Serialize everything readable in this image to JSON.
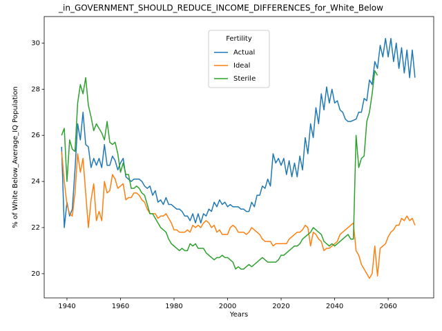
{
  "chart_data": {
    "type": "line",
    "title": "_in_GOVERNMENT_SHOULD_REDUCE_INCOME_DIFFERENCES_for_White_Below",
    "xlabel": "Years",
    "ylabel": "% of White Below_Average_IQ Population",
    "legend_title": "Fertility",
    "legend": "upper center",
    "grid": false,
    "xlim": [
      1931.5,
      2077
    ],
    "ylim": [
      18.95,
      31.15
    ],
    "xticks": [
      1940,
      1960,
      1980,
      2000,
      2020,
      2040,
      2060
    ],
    "yticks": [
      20,
      22,
      24,
      26,
      28,
      30
    ],
    "x": [
      1938,
      1939,
      1940,
      1941,
      1942,
      1943,
      1944,
      1945,
      1946,
      1947,
      1948,
      1949,
      1950,
      1951,
      1952,
      1953,
      1954,
      1955,
      1956,
      1957,
      1958,
      1959,
      1960,
      1961,
      1962,
      1963,
      1964,
      1965,
      1966,
      1967,
      1968,
      1969,
      1970,
      1971,
      1972,
      1973,
      1974,
      1975,
      1976,
      1977,
      1978,
      1979,
      1980,
      1981,
      1982,
      1983,
      1984,
      1985,
      1986,
      1987,
      1988,
      1989,
      1990,
      1991,
      1992,
      1993,
      1994,
      1995,
      1996,
      1997,
      1998,
      1999,
      2000,
      2001,
      2002,
      2003,
      2004,
      2005,
      2006,
      2007,
      2008,
      2009,
      2010,
      2011,
      2012,
      2013,
      2014,
      2015,
      2016,
      2017,
      2018,
      2019,
      2020,
      2021,
      2022,
      2023,
      2024,
      2025,
      2026,
      2027,
      2028,
      2029,
      2030,
      2031,
      2032,
      2033,
      2034,
      2035,
      2036,
      2037,
      2038,
      2039,
      2040,
      2041,
      2042,
      2043,
      2044,
      2045,
      2046,
      2047,
      2048,
      2049,
      2050,
      2051,
      2052,
      2053,
      2054,
      2055,
      2056,
      2057,
      2058,
      2059,
      2060,
      2061,
      2062,
      2063,
      2064,
      2065,
      2066,
      2067,
      2068,
      2069,
      2070
    ],
    "series": [
      {
        "name": "Actual",
        "color": "#1f77b4",
        "values": [
          25.5,
          22.0,
          23.1,
          22.5,
          22.8,
          24.5,
          26.5,
          25.8,
          27.0,
          25.6,
          25.5,
          24.6,
          25.0,
          24.7,
          25.0,
          24.6,
          25.6,
          24.7,
          24.7,
          25.1,
          24.9,
          24.5,
          24.8,
          25.0,
          24.2,
          24.1,
          24.0,
          24.1,
          24.1,
          24.1,
          24.0,
          23.8,
          23.7,
          23.8,
          23.4,
          23.6,
          23.1,
          23.2,
          23.0,
          23.3,
          23.0,
          23.0,
          22.9,
          22.8,
          22.8,
          22.7,
          22.5,
          22.5,
          22.3,
          22.6,
          22.2,
          22.6,
          22.2,
          22.6,
          22.5,
          22.8,
          22.7,
          23.1,
          22.9,
          23.2,
          23.0,
          23.1,
          22.9,
          23.0,
          22.9,
          22.9,
          22.9,
          22.8,
          22.8,
          22.7,
          22.7,
          23.1,
          22.9,
          23.4,
          23.4,
          23.8,
          23.7,
          24.1,
          23.8,
          25.2,
          24.8,
          25.0,
          24.7,
          25.0,
          24.3,
          24.9,
          24.2,
          24.8,
          24.2,
          25.1,
          24.5,
          25.9,
          25.2,
          26.5,
          25.9,
          27.2,
          26.5,
          27.8,
          27.1,
          28.1,
          27.4,
          28.0,
          27.4,
          27.5,
          27.1,
          27.0,
          26.7,
          26.6,
          26.6,
          26.65,
          26.7,
          27.0,
          27.0,
          27.6,
          27.5,
          28.4,
          28.2,
          29.2,
          28.9,
          29.9,
          29.4,
          30.2,
          29.4,
          30.2,
          29.2,
          30.0,
          28.9,
          29.8,
          28.7,
          29.7,
          28.5,
          29.7,
          28.5
        ]
      },
      {
        "name": "Ideal",
        "color": "#ff7f0e",
        "values": [
          25.3,
          24.0,
          23.0,
          22.6,
          22.5,
          23.5,
          25.2,
          24.4,
          25.0,
          23.5,
          22.0,
          23.2,
          23.9,
          22.3,
          22.7,
          22.3,
          24.0,
          23.5,
          23.6,
          24.3,
          24.1,
          23.7,
          23.8,
          23.9,
          23.2,
          23.3,
          23.3,
          23.5,
          23.5,
          23.4,
          23.2,
          23.1,
          22.8,
          22.6,
          22.6,
          22.6,
          22.4,
          22.5,
          22.5,
          22.6,
          22.4,
          22.2,
          21.9,
          21.9,
          21.8,
          21.8,
          21.8,
          21.9,
          21.8,
          22.1,
          22.0,
          22.1,
          22.0,
          22.2,
          22.3,
          22.2,
          22.0,
          22.1,
          21.8,
          21.9,
          21.7,
          21.7,
          21.7,
          22.0,
          22.1,
          22.0,
          21.8,
          21.8,
          21.8,
          21.7,
          21.8,
          22.0,
          21.9,
          21.8,
          21.7,
          21.5,
          21.4,
          21.4,
          21.4,
          21.2,
          21.3,
          21.3,
          21.3,
          21.3,
          21.3,
          21.5,
          21.6,
          21.7,
          21.8,
          21.8,
          21.9,
          22.1,
          22.0,
          21.2,
          21.8,
          21.7,
          21.5,
          21.4,
          21.0,
          21.1,
          21.1,
          21.2,
          21.3,
          21.4,
          21.7,
          21.8,
          21.9,
          22.0,
          22.1,
          22.2,
          21.0,
          20.8,
          20.4,
          20.2,
          20.0,
          19.8,
          20.0,
          21.2,
          19.9,
          21.1,
          21.2,
          21.3,
          21.6,
          21.8,
          21.9,
          22.1,
          22.1,
          22.4,
          22.3,
          22.5,
          22.3,
          22.4,
          22.1
        ]
      },
      {
        "name": "Sterile",
        "color": "#2ca02c",
        "values": [
          26.0,
          26.3,
          24.0,
          25.8,
          25.4,
          25.3,
          27.4,
          28.2,
          27.8,
          28.5,
          27.3,
          26.8,
          26.2,
          26.5,
          26.3,
          26.1,
          25.8,
          26.6,
          25.7,
          25.6,
          25.7,
          25.2,
          24.4,
          24.8,
          24.3,
          24.3,
          23.7,
          23.7,
          23.8,
          23.7,
          23.5,
          23.4,
          23.0,
          22.6,
          22.6,
          22.4,
          22.2,
          22.0,
          21.9,
          21.8,
          21.5,
          21.3,
          21.2,
          21.1,
          21.0,
          21.1,
          21.0,
          21.0,
          21.3,
          21.2,
          21.3,
          21.1,
          21.1,
          21.1,
          20.9,
          20.8,
          20.7,
          20.6,
          20.7,
          20.7,
          20.8,
          20.7,
          20.7,
          20.6,
          20.5,
          20.2,
          20.3,
          20.2,
          20.2,
          20.3,
          20.4,
          20.3,
          20.4,
          20.5,
          20.6,
          20.7,
          20.6,
          20.5,
          20.5,
          20.5,
          20.5,
          20.6,
          20.8,
          20.8,
          20.9,
          21.0,
          21.1,
          21.2,
          21.2,
          21.3,
          21.5,
          21.6,
          21.7,
          21.8,
          22.0,
          21.9,
          21.8,
          21.7,
          21.4,
          21.3,
          21.2,
          21.3,
          21.2,
          21.3,
          21.4,
          21.5,
          21.6,
          21.7,
          21.5,
          21.5,
          26.0,
          24.6,
          25.0,
          25.1,
          26.6,
          27.0,
          27.8,
          28.8,
          28.6,
          null,
          null,
          null,
          null,
          null,
          null,
          null,
          null,
          null,
          null,
          null,
          null,
          null,
          null
        ]
      }
    ]
  }
}
